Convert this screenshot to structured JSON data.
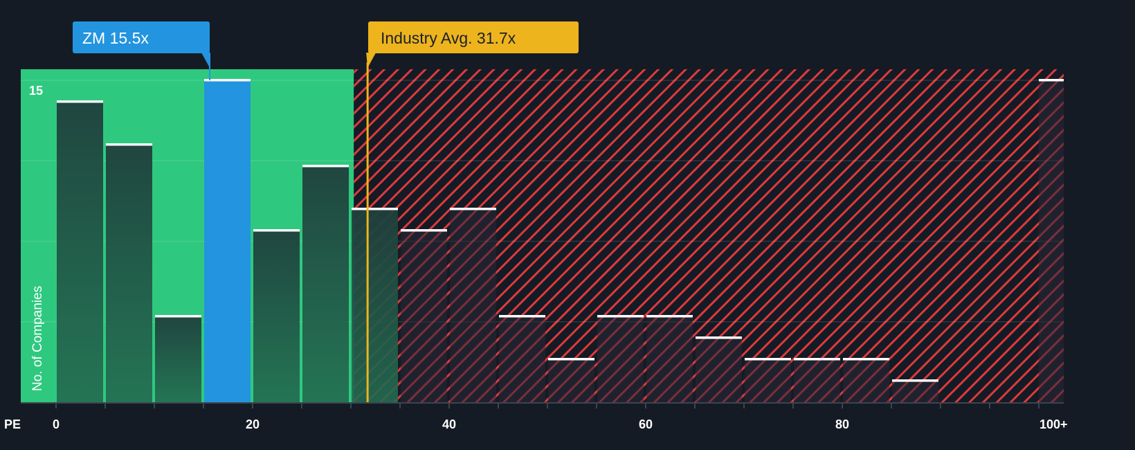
{
  "chart_data": {
    "type": "bar",
    "title": "",
    "xlabel": "PE",
    "ylabel": "No. of Companies",
    "ylim": [
      0,
      15
    ],
    "y_tick_labels": [
      "15"
    ],
    "x_tick_labels": [
      "0",
      "20",
      "40",
      "60",
      "80",
      "100+"
    ],
    "bin_width": 5,
    "categories": [
      "0-5",
      "5-10",
      "10-15",
      "15-20",
      "20-25",
      "25-30",
      "30-35",
      "35-40",
      "40-45",
      "45-50",
      "50-55",
      "55-60",
      "60-65",
      "65-70",
      "70-75",
      "75-80",
      "80-85",
      "85-90",
      "90-95",
      "95-100",
      "100+"
    ],
    "values": [
      14,
      12,
      4,
      15,
      8,
      11,
      9,
      8,
      9,
      4,
      2,
      4,
      4,
      3,
      2,
      2,
      2,
      1,
      0,
      0,
      15
    ],
    "highlight_bin": "15-20",
    "fair_range_max": 30.3,
    "annotations": {
      "company": {
        "label": "ZM 15.5x",
        "value": 15.5,
        "color": "#2394df"
      },
      "industry": {
        "label": "Industry Avg. 31.7x",
        "value": 31.7,
        "color": "#edb41d"
      }
    },
    "colors": {
      "background": "#151b24",
      "fair": "#2ec97f",
      "expensive_hatch": "#e0393e",
      "bar_dark": "#1c2a30"
    }
  }
}
